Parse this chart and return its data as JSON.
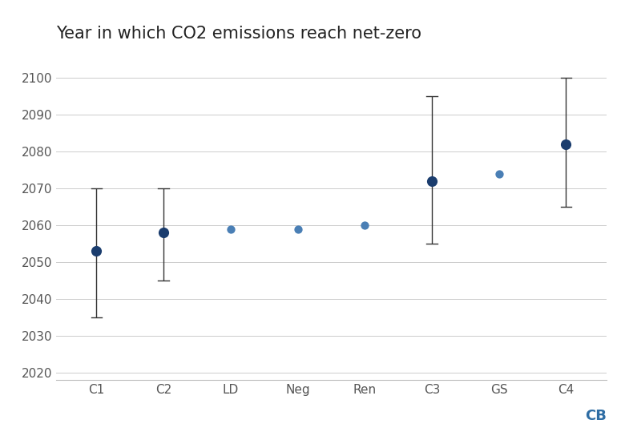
{
  "title": "Year in which CO2 emissions reach net-zero",
  "categories": [
    "C1",
    "C2",
    "LD",
    "Neg",
    "Ren",
    "C3",
    "GS",
    "C4"
  ],
  "medians": [
    2053,
    2058,
    2059,
    2059,
    2060,
    2072,
    2074,
    2082
  ],
  "lower_errors": [
    18,
    13,
    0,
    0,
    0,
    17,
    0,
    17
  ],
  "upper_errors": [
    17,
    12,
    0,
    0,
    0,
    23,
    0,
    18
  ],
  "dot_colors": [
    "#1b3d6e",
    "#1b3d6e",
    "#4a7fb5",
    "#4a7fb5",
    "#4a7fb5",
    "#1b3d6e",
    "#4a7fb5",
    "#1b3d6e"
  ],
  "dot_sizes": [
    90,
    90,
    55,
    55,
    55,
    90,
    55,
    90
  ],
  "error_color": "#333333",
  "background_color": "#ffffff",
  "grid_color": "#cccccc",
  "ylim": [
    2018,
    2107
  ],
  "yticks": [
    2020,
    2030,
    2040,
    2050,
    2060,
    2070,
    2080,
    2090,
    2100
  ],
  "tick_fontsize": 11,
  "title_fontsize": 15,
  "watermark": "CB",
  "watermark_color": "#2e6da4"
}
